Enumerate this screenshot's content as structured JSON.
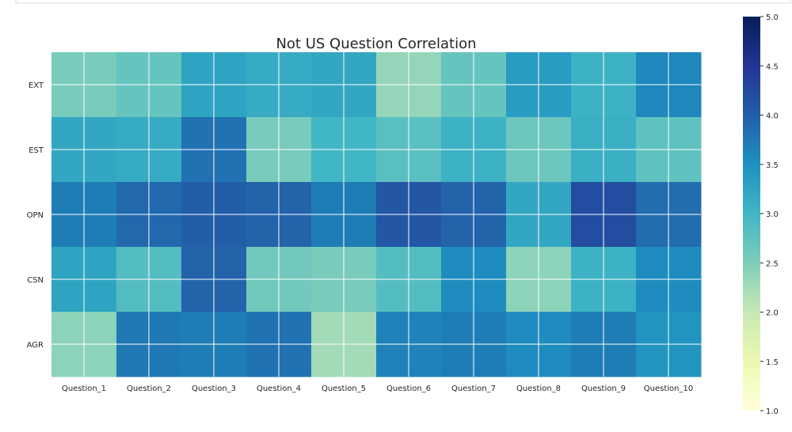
{
  "chart_data": {
    "type": "heatmap",
    "title": "Not US Question Correlation",
    "x_labels": [
      "Question_1",
      "Question_2",
      "Question_3",
      "Question_4",
      "Question_5",
      "Question_6",
      "Question_7",
      "Question_8",
      "Question_9",
      "Question_10"
    ],
    "y_labels": [
      "EXT",
      "EST",
      "OPN",
      "CSN",
      "AGR"
    ],
    "values": [
      [
        2.55,
        2.7,
        3.25,
        3.15,
        3.2,
        2.35,
        2.7,
        3.35,
        3.05,
        3.6
      ],
      [
        3.2,
        3.15,
        3.8,
        2.55,
        3.0,
        2.8,
        3.05,
        2.65,
        3.1,
        2.75
      ],
      [
        3.7,
        3.9,
        4.0,
        3.95,
        3.7,
        4.1,
        3.95,
        3.2,
        4.2,
        3.85
      ],
      [
        3.25,
        2.85,
        3.95,
        2.6,
        2.55,
        2.85,
        3.55,
        2.4,
        3.05,
        3.55
      ],
      [
        2.4,
        3.75,
        3.7,
        3.8,
        2.25,
        3.65,
        3.7,
        3.55,
        3.7,
        3.45
      ]
    ],
    "colorbar": {
      "min": 1.0,
      "max": 5.0,
      "ticks": [
        "1.0",
        "1.5",
        "2.0",
        "2.5",
        "3.0",
        "3.5",
        "4.0",
        "4.5",
        "5.0"
      ],
      "colormap": "YlGnBu"
    },
    "grid": true
  }
}
